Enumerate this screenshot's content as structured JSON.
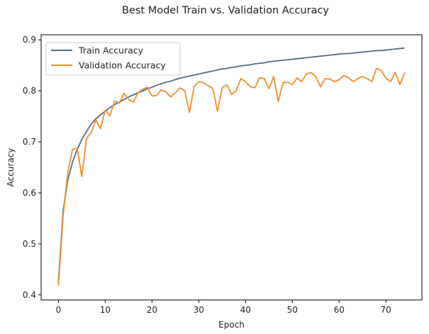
{
  "chart_data": {
    "type": "line",
    "title": "Best Model Train vs. Validation Accuracy",
    "xlabel": "Epoch",
    "ylabel": "Accuracy",
    "xlim": [
      -3.7,
      77.7
    ],
    "ylim": [
      0.39,
      0.91
    ],
    "xticks": [
      0,
      10,
      20,
      30,
      40,
      50,
      60,
      70
    ],
    "yticks": [
      0.4,
      0.5,
      0.6,
      0.7,
      0.8,
      0.9
    ],
    "xtick_labels": [
      "0",
      "10",
      "20",
      "30",
      "40",
      "50",
      "60",
      "70"
    ],
    "ytick_labels": [
      "0.4",
      "0.5",
      "0.6",
      "0.7",
      "0.8",
      "0.9"
    ],
    "grid": false,
    "legend_position": "top-left",
    "x": [
      0,
      1,
      2,
      3,
      4,
      5,
      6,
      7,
      8,
      9,
      10,
      11,
      12,
      13,
      14,
      15,
      16,
      17,
      18,
      19,
      20,
      21,
      22,
      23,
      24,
      25,
      26,
      27,
      28,
      29,
      30,
      31,
      32,
      33,
      34,
      35,
      36,
      37,
      38,
      39,
      40,
      41,
      42,
      43,
      44,
      45,
      46,
      47,
      48,
      49,
      50,
      51,
      52,
      53,
      54,
      55,
      56,
      57,
      58,
      59,
      60,
      61,
      62,
      63,
      64,
      65,
      66,
      67,
      68,
      69,
      70,
      71,
      72,
      73,
      74
    ],
    "series": [
      {
        "name": "Train Accuracy",
        "color": "#4e6f85",
        "values": [
          0.425,
          0.565,
          0.625,
          0.66,
          0.685,
          0.705,
          0.72,
          0.735,
          0.745,
          0.753,
          0.76,
          0.767,
          0.773,
          0.778,
          0.783,
          0.788,
          0.792,
          0.796,
          0.8,
          0.804,
          0.807,
          0.811,
          0.814,
          0.817,
          0.819,
          0.822,
          0.825,
          0.827,
          0.829,
          0.831,
          0.833,
          0.835,
          0.837,
          0.839,
          0.841,
          0.843,
          0.844,
          0.846,
          0.847,
          0.849,
          0.85,
          0.851,
          0.853,
          0.854,
          0.855,
          0.857,
          0.858,
          0.859,
          0.86,
          0.861,
          0.862,
          0.863,
          0.864,
          0.865,
          0.866,
          0.867,
          0.868,
          0.869,
          0.87,
          0.871,
          0.872,
          0.873,
          0.873,
          0.874,
          0.875,
          0.876,
          0.877,
          0.878,
          0.879,
          0.879,
          0.88,
          0.881,
          0.882,
          0.883,
          0.884
        ]
      },
      {
        "name": "Validation Accuracy",
        "color": "#f28e2b",
        "values": [
          0.418,
          0.555,
          0.64,
          0.685,
          0.688,
          0.632,
          0.707,
          0.718,
          0.743,
          0.726,
          0.762,
          0.751,
          0.78,
          0.776,
          0.795,
          0.783,
          0.778,
          0.796,
          0.803,
          0.807,
          0.79,
          0.791,
          0.802,
          0.798,
          0.788,
          0.796,
          0.806,
          0.8,
          0.758,
          0.808,
          0.818,
          0.816,
          0.81,
          0.805,
          0.76,
          0.806,
          0.812,
          0.793,
          0.8,
          0.824,
          0.818,
          0.808,
          0.806,
          0.826,
          0.824,
          0.804,
          0.828,
          0.779,
          0.816,
          0.817,
          0.812,
          0.825,
          0.818,
          0.833,
          0.836,
          0.828,
          0.808,
          0.824,
          0.823,
          0.818,
          0.822,
          0.83,
          0.826,
          0.818,
          0.824,
          0.828,
          0.824,
          0.818,
          0.844,
          0.84,
          0.825,
          0.818,
          0.836,
          0.812,
          0.836
        ]
      }
    ]
  }
}
